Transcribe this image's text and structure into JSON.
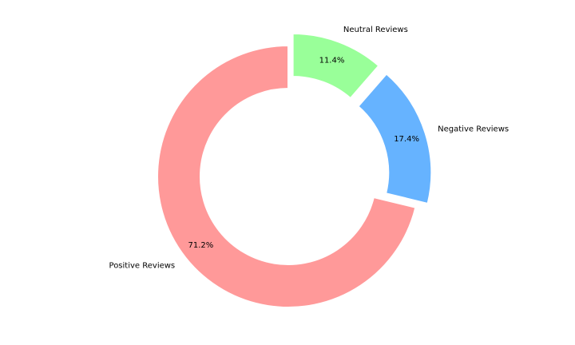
{
  "chart_data": {
    "type": "pie",
    "variant": "donut",
    "title": "",
    "categories": [
      "Positive Reviews",
      "Negative Reviews",
      "Neutral Reviews"
    ],
    "values": [
      71.2,
      17.4,
      11.4
    ],
    "value_labels": [
      "71.2%",
      "17.4%",
      "11.4%"
    ],
    "colors": [
      "#ff9999",
      "#66b3ff",
      "#99ff99"
    ],
    "exploded": [
      false,
      true,
      true
    ],
    "start_angle_deg": 90,
    "direction": "counterclockwise",
    "legend": "none"
  }
}
